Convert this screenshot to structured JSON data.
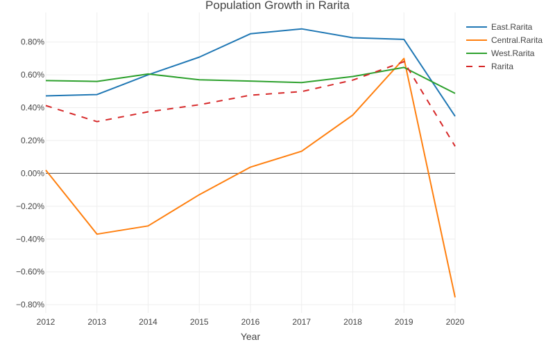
{
  "chart_data": {
    "type": "line",
    "title": "Population Growth in Rarita",
    "xlabel": "Year",
    "ylabel": "",
    "x": [
      2012,
      2013,
      2014,
      2015,
      2016,
      2017,
      2018,
      2019,
      2020
    ],
    "xlim": [
      2012,
      2020
    ],
    "ylim": [
      -0.0085,
      0.0098
    ],
    "y_ticks": [
      -0.008,
      -0.006,
      -0.004,
      -0.002,
      0,
      0.002,
      0.004,
      0.006,
      0.008
    ],
    "y_tick_labels": [
      "−0.80%",
      "−0.60%",
      "−0.40%",
      "−0.20%",
      "0.00%",
      "0.20%",
      "0.40%",
      "0.60%",
      "0.80%"
    ],
    "x_tick_labels": [
      "2012",
      "2013",
      "2014",
      "2015",
      "2016",
      "2017",
      "2018",
      "2019",
      "2020"
    ],
    "grid": true,
    "zero_line": true,
    "legend_position": "top-right",
    "series": [
      {
        "name": "East.Rarita",
        "color": "#1f77b4",
        "dash": "solid",
        "values": [
          0.00472,
          0.0048,
          0.006,
          0.00708,
          0.0085,
          0.0088,
          0.00826,
          0.00816,
          0.00348
        ]
      },
      {
        "name": "Central.Rarita",
        "color": "#ff7f0e",
        "dash": "solid",
        "values": [
          0.0002,
          -0.0037,
          -0.0032,
          -0.0013,
          0.00038,
          0.00135,
          0.00355,
          0.007,
          -0.00755
        ]
      },
      {
        "name": "West.Rarita",
        "color": "#2ca02c",
        "dash": "solid",
        "values": [
          0.00565,
          0.0056,
          0.00605,
          0.0057,
          0.00562,
          0.00553,
          0.0059,
          0.00645,
          0.00487
        ]
      },
      {
        "name": "Rarita",
        "color": "#d62728",
        "dash": "dash",
        "values": [
          0.00413,
          0.00315,
          0.00375,
          0.00418,
          0.00476,
          0.00498,
          0.00568,
          0.0068,
          0.00165
        ]
      }
    ]
  }
}
